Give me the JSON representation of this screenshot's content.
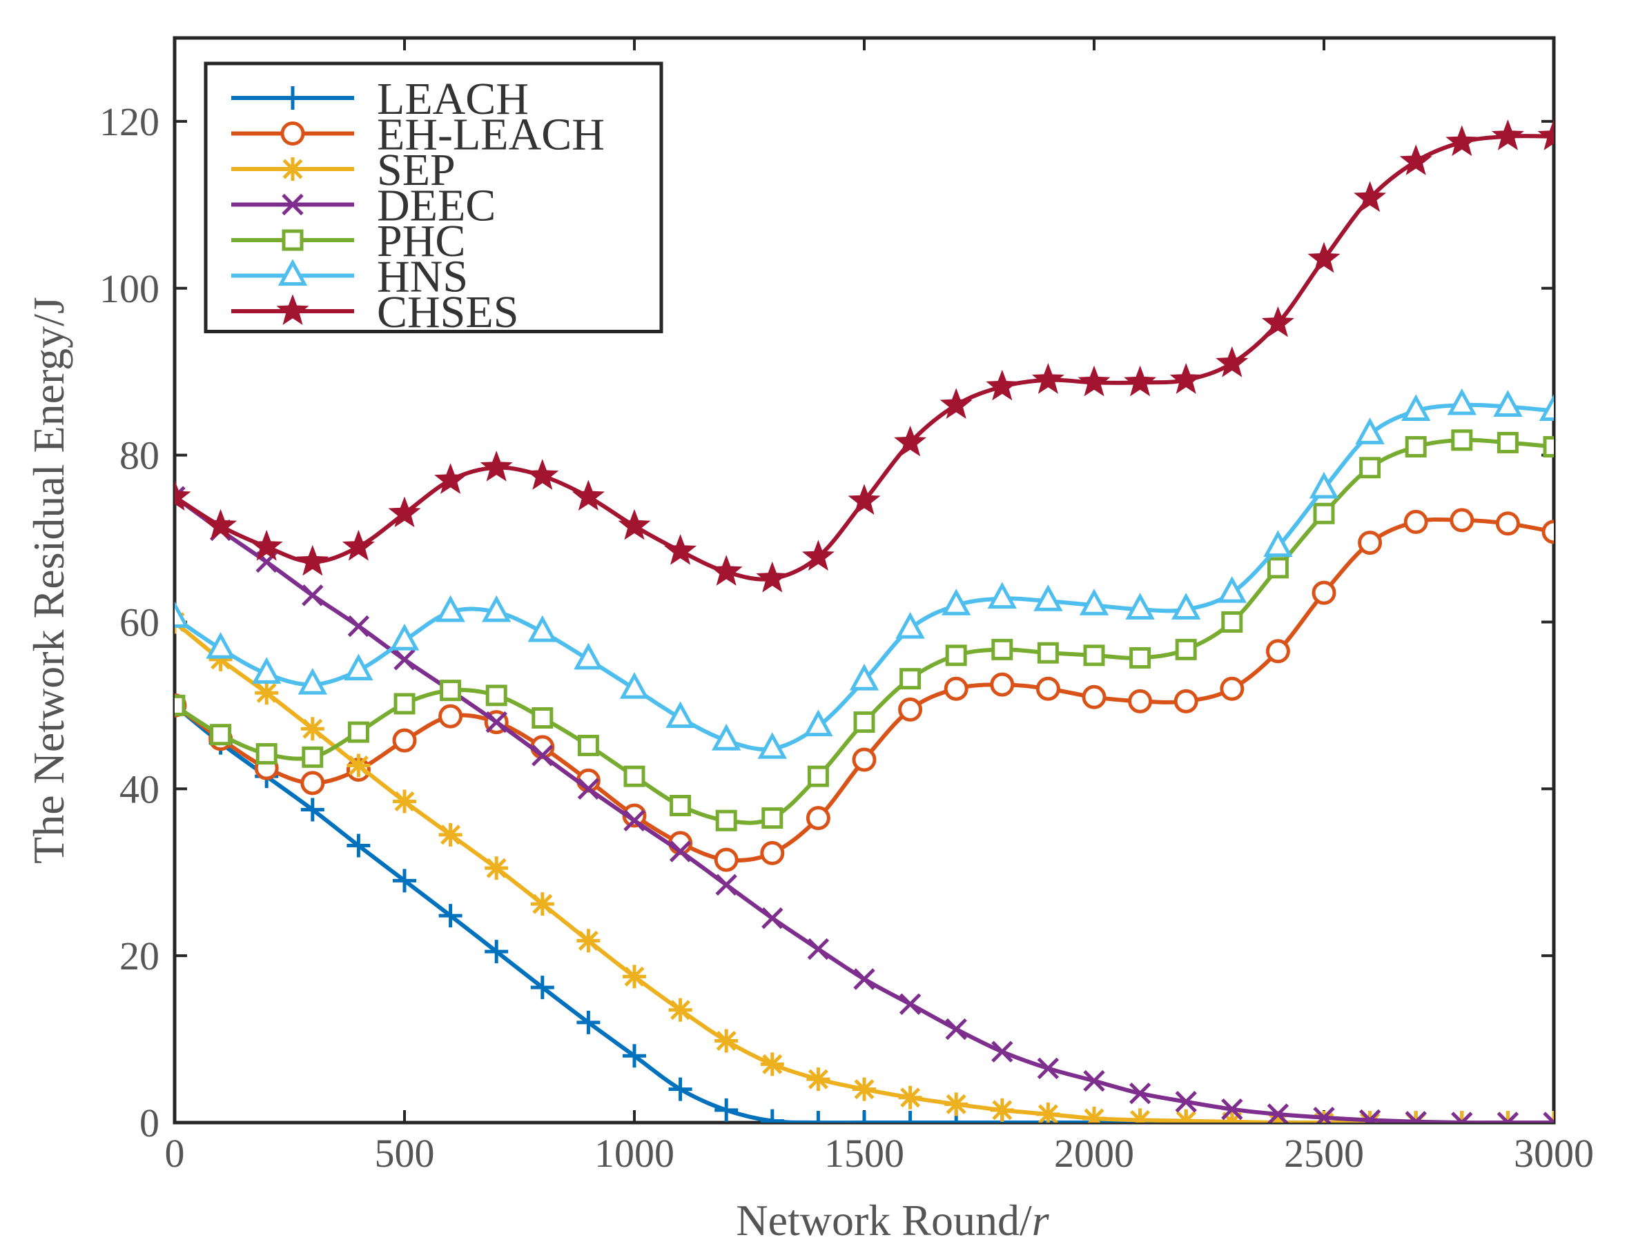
{
  "chart_data": {
    "type": "line",
    "title": "",
    "xlabel": "Network Round/",
    "xlabel_var": "r",
    "ylabel": "The Network Residual Energy/J",
    "xlim": [
      0,
      3000
    ],
    "ylim": [
      0,
      130
    ],
    "xticks": [
      0,
      500,
      1000,
      1500,
      2000,
      2500,
      3000
    ],
    "yticks": [
      0,
      20,
      40,
      60,
      80,
      100,
      120
    ],
    "legend_position": "top-left",
    "x": [
      0,
      100,
      200,
      300,
      400,
      500,
      600,
      700,
      800,
      900,
      1000,
      1100,
      1200,
      1300,
      1400,
      1500,
      1600,
      1700,
      1800,
      1900,
      2000,
      2100,
      2200,
      2300,
      2400,
      2500,
      2600,
      2700,
      2800,
      2900,
      3000
    ],
    "series": [
      {
        "name": "LEACH",
        "color": "#0072BD",
        "marker": "plus",
        "values": [
          50,
          45.5,
          41.5,
          37.5,
          33.2,
          29,
          24.8,
          20.5,
          16.2,
          12,
          8,
          4,
          1.5,
          0.2,
          0,
          0,
          0,
          0,
          0,
          0,
          0,
          0,
          0,
          0,
          0,
          0,
          0,
          0,
          0,
          0,
          0
        ]
      },
      {
        "name": "EH-LEACH",
        "color": "#D95319",
        "marker": "circle",
        "values": [
          50,
          46,
          42.5,
          40.7,
          42.3,
          45.8,
          48.7,
          48,
          45,
          41,
          36.8,
          33.5,
          31.5,
          32.3,
          36.5,
          43.5,
          49.5,
          52,
          52.5,
          52,
          51,
          50.5,
          50.5,
          52,
          56.5,
          63.5,
          69.5,
          72,
          72.2,
          71.8,
          70.8
        ]
      },
      {
        "name": "SEP",
        "color": "#EDB120",
        "marker": "asterisk",
        "values": [
          60,
          55.5,
          51.5,
          47.2,
          42.8,
          38.5,
          34.5,
          30.5,
          26.2,
          21.8,
          17.5,
          13.5,
          9.8,
          7,
          5.2,
          4,
          3,
          2.2,
          1.5,
          1,
          0.5,
          0.3,
          0.2,
          0.1,
          0,
          0,
          0,
          0,
          0,
          0,
          0
        ]
      },
      {
        "name": "DEEC",
        "color": "#7E2F8E",
        "marker": "x",
        "values": [
          75,
          71,
          67.2,
          63.2,
          59.5,
          55.5,
          51.8,
          48,
          44,
          40,
          36.2,
          32.5,
          28.5,
          24.5,
          20.8,
          17.2,
          14.2,
          11.2,
          8.5,
          6.5,
          5,
          3.5,
          2.5,
          1.6,
          1,
          0.6,
          0.3,
          0.1,
          0,
          0,
          0
        ]
      },
      {
        "name": "PHC",
        "color": "#77AC30",
        "marker": "square",
        "values": [
          50,
          46.5,
          44.2,
          43.8,
          46.8,
          50.2,
          51.8,
          51.2,
          48.5,
          45.2,
          41.5,
          38,
          36.2,
          36.5,
          41.5,
          48,
          53.2,
          56,
          56.7,
          56.3,
          56,
          55.7,
          56.7,
          60,
          66.5,
          73,
          78.5,
          81,
          81.8,
          81.5,
          81
        ]
      },
      {
        "name": "HNS",
        "color": "#4DBEEE",
        "marker": "triangle",
        "values": [
          60.5,
          56.8,
          53.8,
          52.5,
          54.2,
          57.8,
          61.2,
          61.2,
          58.8,
          55.5,
          52,
          48.5,
          45.8,
          44.8,
          47.5,
          53,
          59.2,
          62,
          62.8,
          62.5,
          62,
          61.5,
          61.5,
          63.5,
          69,
          76,
          82.5,
          85.3,
          86,
          85.8,
          85.3
        ]
      },
      {
        "name": "CHSES",
        "color": "#A2142F",
        "marker": "star",
        "values": [
          75,
          71.5,
          69,
          67.2,
          69,
          73,
          77,
          78.5,
          77.5,
          75,
          71.5,
          68.5,
          66,
          65.2,
          67.8,
          74.5,
          81.5,
          86,
          88.2,
          89,
          88.7,
          88.7,
          89,
          91,
          95.8,
          103.5,
          110.8,
          115.2,
          117.5,
          118.2,
          118.2
        ]
      }
    ]
  }
}
